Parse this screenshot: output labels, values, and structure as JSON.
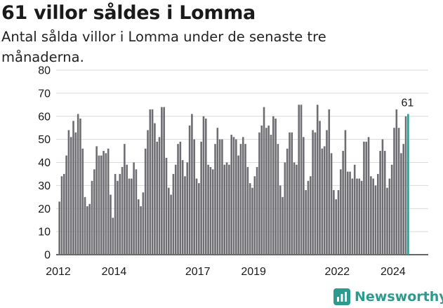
{
  "header": {
    "title": "61 villor såldes i Lomma",
    "subtitle": "Antal sålda villor i Lomma under de senaste tre månaderna."
  },
  "brand": {
    "name": "Newsworthy"
  },
  "colors": {
    "bar": "#6e6d72",
    "highlight": "#2d9a8e",
    "grid": "#d9d9d9",
    "axis": "#333333",
    "text": "#1a1a1a"
  },
  "chart_data": {
    "type": "bar",
    "title": "61 villor såldes i Lomma",
    "subtitle": "Antal sålda villor i Lomma under de senaste tre månaderna.",
    "xlabel": "",
    "ylabel": "",
    "ylim": [
      0,
      80
    ],
    "yticks": [
      0,
      10,
      20,
      30,
      40,
      50,
      60,
      70,
      80
    ],
    "xtick_labels": [
      "2012",
      "2014",
      "2017",
      "2019",
      "2022",
      "2024"
    ],
    "grid": true,
    "legend": "none",
    "highlight_label": "61",
    "x_start": "2012-01",
    "x_end": "2024-09",
    "frequency": "monthly",
    "values": [
      23,
      34,
      35,
      43,
      54,
      51,
      58,
      53,
      61,
      59,
      46,
      25,
      21,
      22,
      32,
      37,
      47,
      43,
      43,
      45,
      44,
      46,
      26,
      16,
      35,
      32,
      35,
      38,
      48,
      39,
      33,
      33,
      40,
      37,
      24,
      21,
      27,
      46,
      54,
      63,
      63,
      57,
      49,
      51,
      64,
      64,
      42,
      29,
      26,
      35,
      39,
      48,
      49,
      41,
      34,
      40,
      56,
      61,
      50,
      33,
      31,
      49,
      60,
      59,
      39,
      38,
      37,
      48,
      55,
      50,
      50,
      39,
      40,
      39,
      52,
      51,
      50,
      43,
      48,
      51,
      48,
      38,
      31,
      29,
      34,
      38,
      53,
      56,
      64,
      55,
      56,
      52,
      60,
      59,
      48,
      30,
      25,
      40,
      46,
      53,
      53,
      40,
      39,
      65,
      65,
      51,
      28,
      32,
      34,
      54,
      53,
      65,
      58,
      46,
      47,
      54,
      63,
      44,
      28,
      24,
      28,
      37,
      45,
      54,
      36,
      36,
      33,
      39,
      33,
      33,
      32,
      49,
      49,
      51,
      34,
      33,
      30,
      35,
      45,
      50,
      45,
      29,
      33,
      39,
      55,
      63,
      55,
      44,
      48,
      60,
      61
    ]
  }
}
